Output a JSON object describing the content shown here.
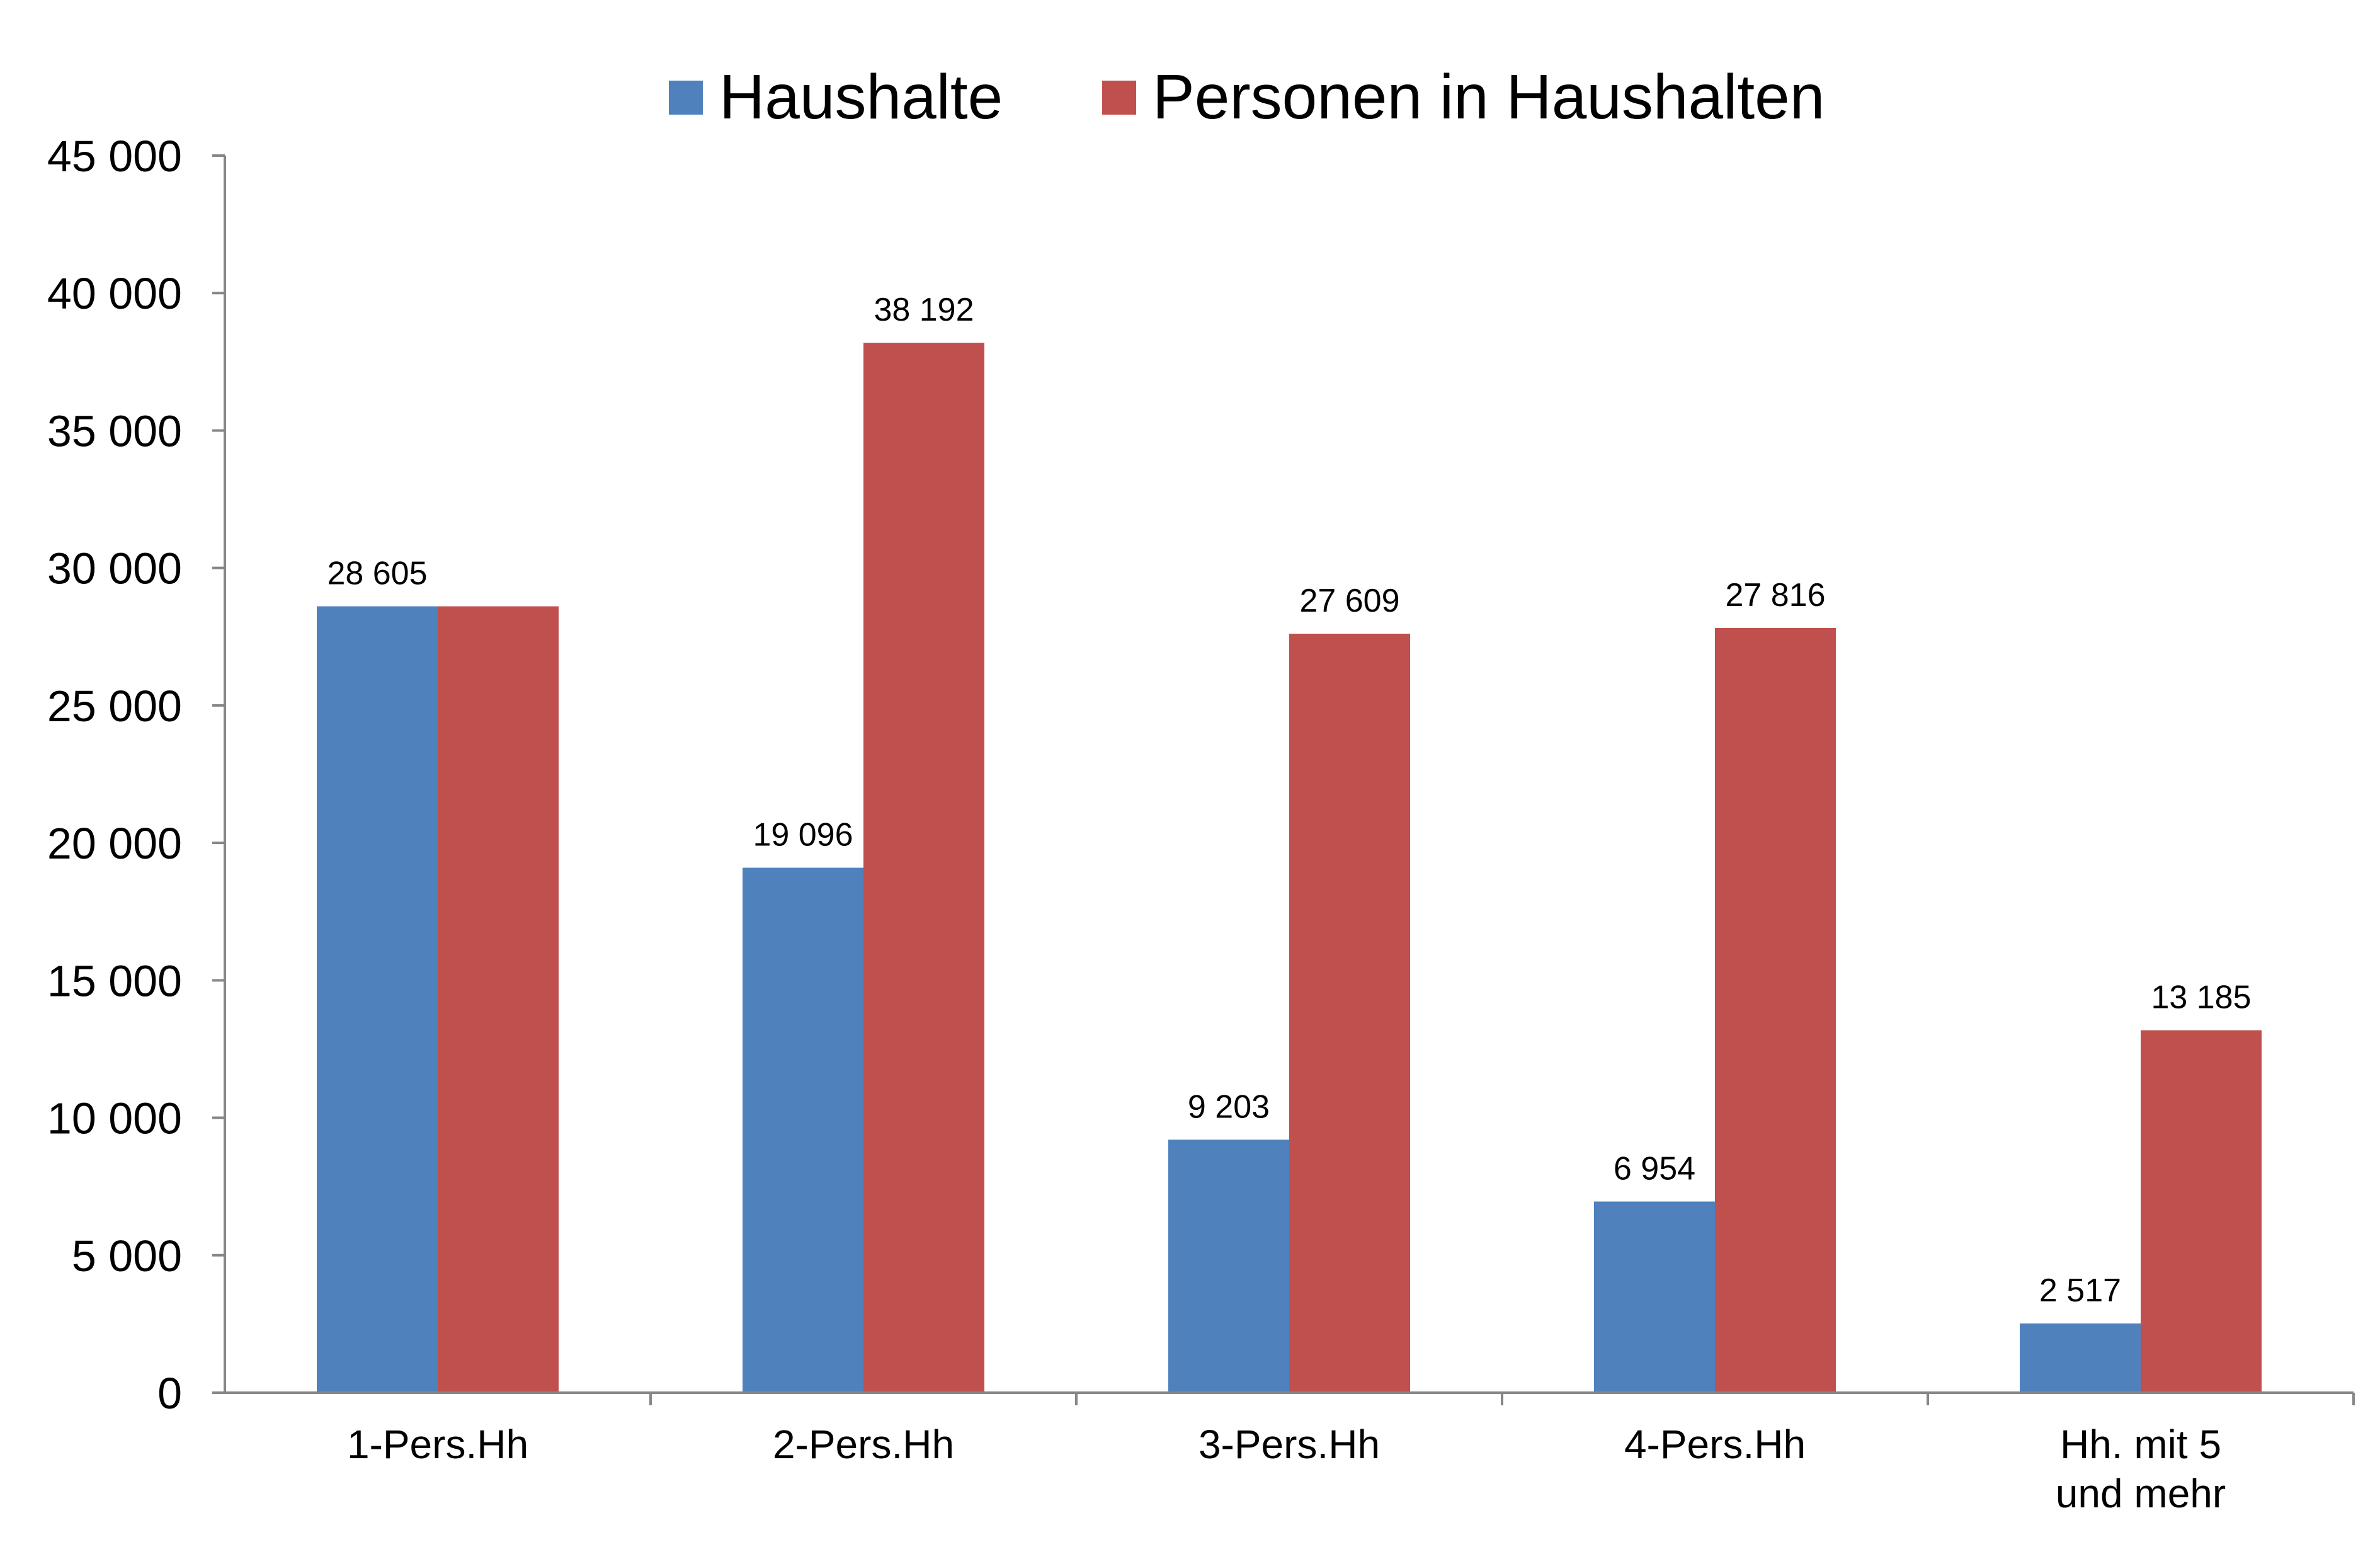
{
  "chart_data": {
    "type": "bar",
    "categories": [
      [
        "1-Pers.Hh"
      ],
      [
        "2-Pers.Hh"
      ],
      [
        "3-Pers.Hh"
      ],
      [
        "4-Pers.Hh"
      ],
      [
        "Hh. mit 5",
        "und mehr"
      ]
    ],
    "series": [
      {
        "name": "Haushalte",
        "color": "#4F81BD",
        "values": [
          28605,
          19096,
          9203,
          6954,
          2517
        ],
        "labels": [
          "28 605",
          "19 096",
          "9 203",
          "6 954",
          "2 517"
        ]
      },
      {
        "name": "Personen in Haushalten",
        "color": "#C0504D",
        "values": [
          28605,
          38192,
          27609,
          27816,
          13185
        ],
        "labels": [
          "",
          "38 192",
          "27 609",
          "27 816",
          "13 185"
        ]
      }
    ],
    "ylim": [
      0,
      45000
    ],
    "yticks": [
      {
        "value": 0,
        "label": "0"
      },
      {
        "value": 5000,
        "label": "5 000"
      },
      {
        "value": 10000,
        "label": "10 000"
      },
      {
        "value": 15000,
        "label": "15 000"
      },
      {
        "value": 20000,
        "label": "20 000"
      },
      {
        "value": 25000,
        "label": "25 000"
      },
      {
        "value": 30000,
        "label": "30 000"
      },
      {
        "value": 35000,
        "label": "35 000"
      },
      {
        "value": 40000,
        "label": "40 000"
      },
      {
        "value": 45000,
        "label": "45 000"
      }
    ],
    "legend_position": "top",
    "grid": false,
    "title": "",
    "xlabel": "",
    "ylabel": ""
  }
}
